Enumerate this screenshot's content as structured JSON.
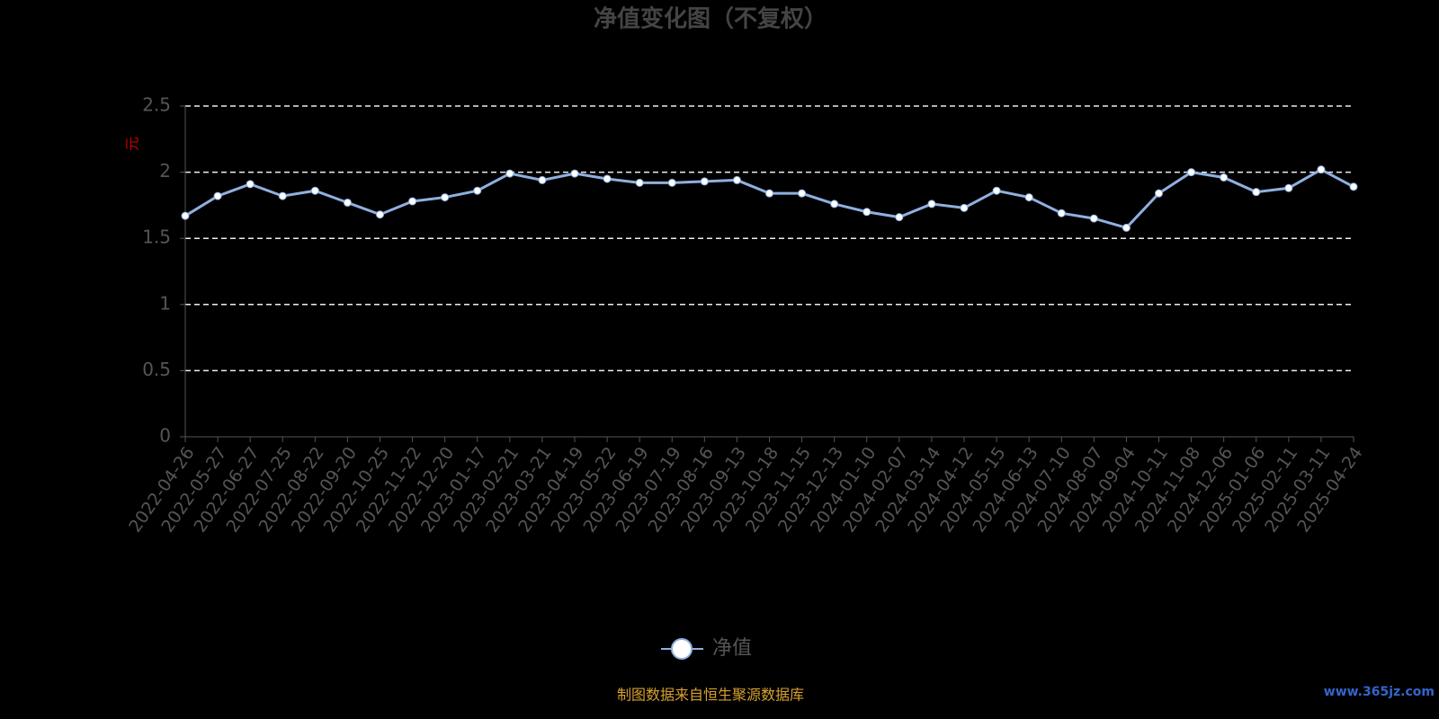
{
  "chart_data": {
    "type": "line",
    "title": "净值变化图（不复权）",
    "y_label": "元",
    "categories": [
      "2022-04-26",
      "2022-05-27",
      "2022-06-27",
      "2022-07-25",
      "2022-08-22",
      "2022-09-20",
      "2022-10-25",
      "2022-11-22",
      "2022-12-20",
      "2023-01-17",
      "2023-02-21",
      "2023-03-21",
      "2023-04-19",
      "2023-05-22",
      "2023-06-19",
      "2023-07-19",
      "2023-08-16",
      "2023-09-13",
      "2023-10-18",
      "2023-11-15",
      "2023-12-13",
      "2024-01-10",
      "2024-02-07",
      "2024-03-14",
      "2024-04-12",
      "2024-05-15",
      "2024-06-13",
      "2024-07-10",
      "2024-08-07",
      "2024-09-04",
      "2024-10-11",
      "2024-11-08",
      "2024-12-06",
      "2025-01-06",
      "2025-02-11",
      "2025-03-11",
      "2025-04-24"
    ],
    "series": [
      {
        "name": "净值",
        "color": "#8fb0e0",
        "values": [
          1.67,
          1.82,
          1.91,
          1.82,
          1.86,
          1.77,
          1.68,
          1.78,
          1.81,
          1.86,
          1.99,
          1.94,
          1.99,
          1.95,
          1.92,
          1.92,
          1.93,
          1.94,
          1.84,
          1.84,
          1.76,
          1.7,
          1.66,
          1.76,
          1.73,
          1.86,
          1.81,
          1.69,
          1.65,
          1.58,
          1.84,
          2.0,
          1.96,
          1.85,
          1.88,
          2.02,
          1.89
        ]
      }
    ],
    "ylim": [
      0,
      2.5
    ],
    "yticks": [
      0,
      0.5,
      1,
      1.5,
      2,
      2.5
    ],
    "grid": true,
    "source": "制图数据来自恒生聚源数据库",
    "watermark": "www.365jz.com"
  }
}
